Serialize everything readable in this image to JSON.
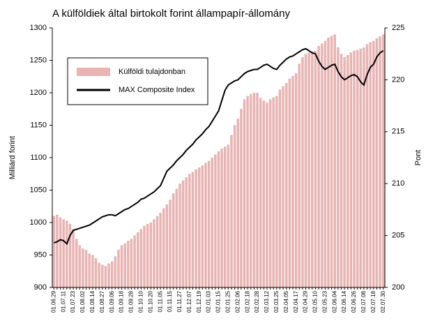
{
  "chart_data": {
    "type": "bar_line",
    "title": "A külföldiek által birtokolt forint állampapír-állomány",
    "y_label": "Milliárd forint",
    "y2_label": "Pont",
    "categories": [
      "01.06.29",
      null,
      null,
      "01.07.11",
      null,
      null,
      "01.07.23",
      null,
      null,
      "01.08.02",
      null,
      null,
      "01.08.14",
      null,
      null,
      "01.08.27",
      null,
      null,
      "01.09.06",
      null,
      null,
      "01.09.18",
      null,
      null,
      "01.09.28",
      null,
      null,
      "01.10.10",
      null,
      null,
      "01.10.20",
      null,
      null,
      "01.11.05",
      null,
      null,
      "01.11.15",
      null,
      null,
      "01.11.27",
      null,
      null,
      "01.12.07",
      null,
      null,
      "01.12.19",
      null,
      null,
      "02.01.03",
      null,
      null,
      "02.01.15",
      null,
      null,
      "02.01.25",
      null,
      null,
      "02.02.06",
      null,
      null,
      "02.02.18",
      null,
      null,
      "02.02.28",
      null,
      null,
      "02.03.12",
      null,
      null,
      "02.03.25",
      null,
      null,
      "02.04.05",
      null,
      null,
      "02.04.17",
      null,
      null,
      "02.04.29",
      null,
      null,
      "02.05.10",
      null,
      null,
      "02.05.23",
      null,
      null,
      "02.06.04",
      null,
      null,
      "02.06.14",
      null,
      null,
      "02.06.26",
      null,
      null,
      "02.07.08",
      null,
      null,
      "02.07.18",
      null,
      null,
      "02.07.30"
    ],
    "series": [
      {
        "name": "Külföldi tulajdonban",
        "color": "#e8b3b3",
        "values": [
          1010,
          1012,
          1008,
          1005,
          1003,
          998,
          990,
          975,
          965,
          960,
          958,
          952,
          950,
          945,
          938,
          935,
          933,
          937,
          940,
          948,
          958,
          965,
          968,
          972,
          975,
          980,
          985,
          990,
          995,
          998,
          1000,
          1005,
          1010,
          1015,
          1022,
          1028,
          1035,
          1045,
          1052,
          1060,
          1065,
          1070,
          1075,
          1078,
          1082,
          1085,
          1088,
          1092,
          1095,
          1100,
          1105,
          1110,
          1114,
          1117,
          1120,
          1135,
          1150,
          1160,
          1175,
          1190,
          1195,
          1198,
          1200,
          1200,
          1192,
          1188,
          1185,
          1190,
          1193,
          1195,
          1205,
          1210,
          1215,
          1222,
          1226,
          1230,
          1245,
          1255,
          1260,
          1262,
          1264,
          1265,
          1272,
          1276,
          1280,
          1285,
          1288,
          1290,
          1270,
          1260,
          1255,
          1258,
          1262,
          1265,
          1266,
          1268,
          1270,
          1275,
          1278,
          1280,
          1284,
          1287,
          1290
        ]
      },
      {
        "name": "MAX Composite Index",
        "color": "#000000",
        "axis": "y2",
        "values": [
          204.3,
          204.4,
          204.6,
          204.5,
          204.2,
          205,
          205.5,
          205.6,
          205.7,
          205.8,
          205.9,
          206,
          206.2,
          206.4,
          206.6,
          206.8,
          206.9,
          207,
          207,
          206.9,
          207.1,
          207.3,
          207.5,
          207.6,
          207.8,
          208,
          208.2,
          208.5,
          208.6,
          208.8,
          209,
          209.2,
          209.5,
          209.8,
          210.5,
          211.2,
          211.5,
          211.8,
          212.2,
          212.5,
          212.8,
          213.2,
          213.5,
          213.8,
          214.2,
          214.5,
          214.8,
          215.2,
          215.5,
          216,
          216.5,
          217,
          218,
          219,
          219.5,
          219.7,
          219.9,
          220,
          220.3,
          220.6,
          220.8,
          220.9,
          221,
          221,
          221.2,
          221.4,
          221.5,
          221.3,
          221.1,
          221,
          221.4,
          221.7,
          222,
          222.2,
          222.3,
          222.5,
          222.7,
          222.9,
          223,
          222.8,
          222.6,
          222.5,
          221.8,
          221.3,
          221,
          221.2,
          221.4,
          221.5,
          220.8,
          220.3,
          220,
          220.2,
          220.4,
          220.5,
          220.3,
          219.8,
          219.5,
          220.5,
          221.2,
          221.5,
          222.2,
          222.6,
          222.8
        ]
      }
    ],
    "ylim": [
      900,
      1300
    ],
    "yticks": [
      900,
      950,
      1000,
      1050,
      1100,
      1150,
      1200,
      1250,
      1300
    ],
    "y2lim": [
      200,
      225
    ],
    "y2ticks": [
      200,
      205,
      210,
      215,
      220,
      225
    ]
  }
}
